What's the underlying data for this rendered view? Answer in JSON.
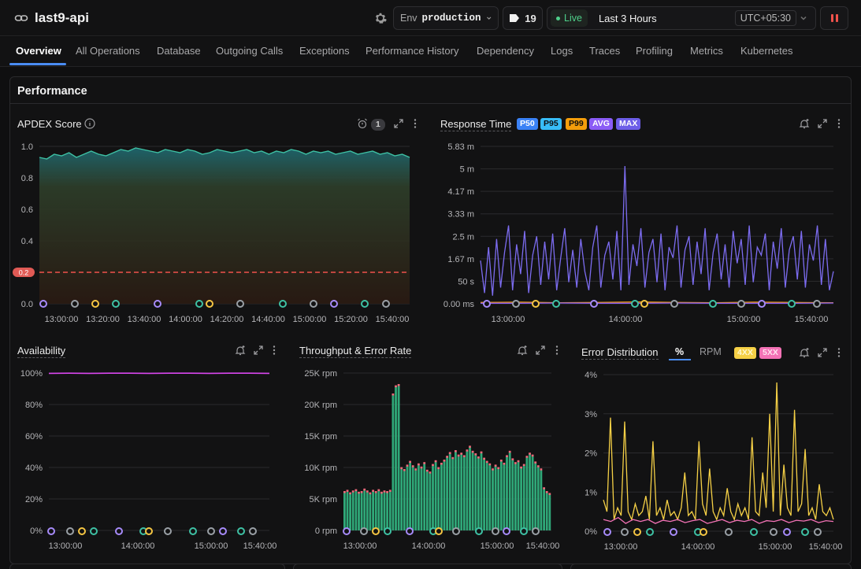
{
  "app": {
    "title": "last9-api"
  },
  "env": {
    "key": "Env",
    "value": "production"
  },
  "tags": {
    "count": "19"
  },
  "time": {
    "live": "Live",
    "range": "Last 3 Hours",
    "tz": "UTC+05:30"
  },
  "nav": {
    "tabs": [
      "Overview",
      "All Operations",
      "Database",
      "Outgoing Calls",
      "Exceptions",
      "Performance History",
      "Dependency",
      "Logs",
      "Traces",
      "Profiling",
      "Metrics",
      "Kubernetes"
    ]
  },
  "section": {
    "title": "Performance"
  },
  "apdex": {
    "title": "APDEX Score",
    "alert_count": "1",
    "threshold_label": "0.2"
  },
  "response": {
    "title": "Response Time",
    "badges": [
      "P50",
      "P95",
      "P99",
      "AVG",
      "MAX"
    ]
  },
  "availability": {
    "title": "Availability"
  },
  "throughput": {
    "title": "Throughput & Error Rate"
  },
  "errdist": {
    "title": "Error Distribution",
    "seg_pct": "%",
    "seg_rpm": "RPM",
    "badges": [
      "4XX",
      "5XX"
    ]
  },
  "colors": {
    "accent": "#4a8cf2",
    "p50": "#3b82f6",
    "p95": "#38bdf8",
    "p99": "#f59e0b",
    "avg": "#8b5cf6",
    "max": "#7c6cf0",
    "apdex": "#3ec1a4",
    "availability": "#d946ef",
    "throughput": "#2fa878",
    "errors": "#f06a7a",
    "err4xx": "#f5d046",
    "err5xx": "#f472b6",
    "threshold": "#f0524b"
  },
  "chart_data": [
    {
      "type": "area",
      "title": "APDEX Score",
      "x_ticks": [
        "13:00:00",
        "13:20:00",
        "13:40:00",
        "14:00:00",
        "14:20:00",
        "14:40:00",
        "15:00:00",
        "15:20:00",
        "15:40:00"
      ],
      "y_ticks": [
        "0.0",
        "0.2",
        "0.4",
        "0.6",
        "0.8",
        "1.0"
      ],
      "ylim": [
        0,
        1
      ],
      "threshold": 0.2,
      "series": [
        {
          "values": [
            0.93,
            0.92,
            0.95,
            0.94,
            0.96,
            0.93,
            0.95,
            0.97,
            0.95,
            0.94,
            0.96,
            0.98,
            0.97,
            0.99,
            0.98,
            0.97,
            0.96,
            0.98,
            0.97,
            0.96,
            0.98,
            0.97,
            0.95,
            0.96,
            0.98,
            0.97,
            0.96,
            0.97,
            0.98,
            0.96,
            0.97,
            0.95,
            0.97,
            0.96,
            0.98,
            0.97,
            0.95,
            0.97,
            0.96,
            0.97,
            0.95,
            0.96,
            0.97,
            0.95,
            0.96,
            0.97,
            0.95,
            0.96,
            0.94,
            0.95,
            0.93
          ]
        }
      ]
    },
    {
      "type": "line",
      "title": "Response Time",
      "x_ticks": [
        "13:00:00",
        "14:00:00",
        "15:00:00",
        "15:40:00"
      ],
      "y_ticks": [
        "0.00 ms",
        "50 s",
        "1.67 m",
        "2.5 m",
        "3.33 m",
        "4.17 m",
        "5 m",
        "5.83 m"
      ],
      "ylim_minutes": [
        0,
        5.83
      ],
      "series": [
        {
          "name": "MAX",
          "values_minutes": [
            1.6,
            0.4,
            2.1,
            0.3,
            2.4,
            0.6,
            1.9,
            2.9,
            0.5,
            2.2,
            1.1,
            2.7,
            0.4,
            1.8,
            2.5,
            0.7,
            2.3,
            0.9,
            2.6,
            0.5,
            1.7,
            2.8,
            0.8,
            2.0,
            0.6,
            2.4,
            1.2,
            0.5,
            2.1,
            2.9,
            0.6,
            1.8,
            2.3,
            0.9,
            2.7,
            0.5,
            5.1,
            0.7,
            2.2,
            1.4,
            2.8,
            0.6,
            1.9,
            2.4,
            0.8,
            2.6,
            0.5,
            2.1,
            1.7,
            2.9,
            0.6,
            2.0,
            2.5,
            0.7,
            2.3,
            1.1,
            2.8,
            0.5,
            1.9,
            2.6,
            0.9,
            2.2,
            0.6,
            2.7,
            1.5,
            2.4,
            0.7,
            2.9,
            0.8,
            2.1,
            1.8,
            2.6,
            0.5,
            2.3,
            1.3,
            2.8,
            0.6,
            2.0,
            2.5,
            0.9,
            2.7,
            0.6,
            2.2,
            1.6,
            2.9,
            0.7,
            2.4,
            0.5,
            1.2
          ]
        },
        {
          "name": "P99",
          "values_minutes": [
            0.05,
            0.06,
            0.04,
            0.05,
            0.07,
            0.05,
            0.04,
            0.06,
            0.05,
            0.04
          ]
        },
        {
          "name": "AVG",
          "values_minutes": [
            0.02,
            0.02,
            0.03,
            0.02,
            0.02,
            0.03,
            0.02,
            0.02,
            0.02,
            0.03
          ]
        }
      ]
    },
    {
      "type": "line",
      "title": "Availability",
      "x_ticks": [
        "13:00:00",
        "14:00:00",
        "15:00:00",
        "15:40:00"
      ],
      "y_ticks": [
        "0%",
        "20%",
        "40%",
        "60%",
        "80%",
        "100%"
      ],
      "ylim": [
        0,
        100
      ],
      "series": [
        {
          "values": [
            99.8,
            99.9,
            99.8,
            99.9,
            99.9,
            99.8,
            99.9,
            99.9,
            99.8,
            99.9,
            99.9,
            99.8
          ]
        }
      ]
    },
    {
      "type": "bar",
      "title": "Throughput & Error Rate",
      "x_ticks": [
        "13:00:00",
        "14:00:00",
        "15:00:00",
        "15:40:00"
      ],
      "y_ticks": [
        "0 rpm",
        "5K rpm",
        "10K rpm",
        "15K rpm",
        "20K rpm",
        "25K rpm"
      ],
      "ylim": [
        0,
        25000
      ],
      "series": [
        {
          "name": "Throughput",
          "values": [
            6000,
            6200,
            5800,
            6100,
            6300,
            5900,
            6000,
            6400,
            6100,
            5800,
            6200,
            6000,
            6300,
            5900,
            6100,
            6000,
            6200,
            21500,
            22800,
            23000,
            9800,
            9500,
            10200,
            10800,
            10100,
            9600,
            10400,
            9900,
            10600,
            9400,
            9100,
            10300,
            10900,
            9800,
            10500,
            11000,
            11600,
            12200,
            11400,
            12500,
            11800,
            12100,
            11700,
            12600,
            13200,
            12400,
            12000,
            11500,
            12300,
            11300,
            10800,
            10400,
            9600,
            10200,
            9800,
            11000,
            10500,
            11700,
            12400,
            11200,
            10600,
            10900,
            9900,
            10300,
            11600,
            12100,
            11800,
            10700,
            10100,
            9600,
            6600,
            6000,
            5700
          ]
        }
      ]
    },
    {
      "type": "line",
      "title": "Error Distribution",
      "x_ticks": [
        "13:00:00",
        "14:00:00",
        "15:00:00",
        "15:40:00"
      ],
      "y_ticks": [
        "0%",
        "1%",
        "2%",
        "3%",
        "4%"
      ],
      "ylim": [
        0,
        4
      ],
      "series": [
        {
          "name": "4XX",
          "values": [
            0.8,
            0.5,
            2.9,
            0.3,
            0.6,
            0.4,
            2.8,
            0.5,
            0.3,
            0.7,
            0.4,
            0.5,
            0.9,
            0.3,
            2.3,
            0.4,
            0.6,
            0.3,
            0.8,
            0.4,
            0.5,
            0.3,
            0.6,
            1.5,
            0.4,
            0.5,
            0.3,
            2.3,
            0.7,
            0.4,
            1.6,
            0.5,
            0.3,
            0.6,
            0.4,
            1.1,
            0.5,
            0.3,
            0.7,
            0.4,
            0.6,
            0.3,
            2.4,
            0.5,
            0.4,
            1.5,
            0.6,
            3.0,
            0.5,
            3.8,
            0.4,
            1.7,
            0.6,
            0.4,
            3.1,
            0.5,
            0.7,
            2.1,
            0.4,
            0.6,
            0.3,
            1.2,
            0.5,
            0.4,
            0.6,
            0.3
          ]
        },
        {
          "name": "5XX",
          "values": [
            0.3,
            0.25,
            0.35,
            0.2,
            0.3,
            0.25,
            0.3,
            0.2,
            0.28,
            0.25,
            0.3,
            0.22,
            0.27,
            0.3,
            0.2,
            0.25,
            0.3,
            0.22,
            0.28,
            0.25,
            0.3,
            0.2,
            0.27,
            0.25,
            0.3,
            0.22,
            0.28,
            0.26,
            0.3,
            0.22,
            0.27,
            0.25
          ]
        }
      ]
    }
  ]
}
